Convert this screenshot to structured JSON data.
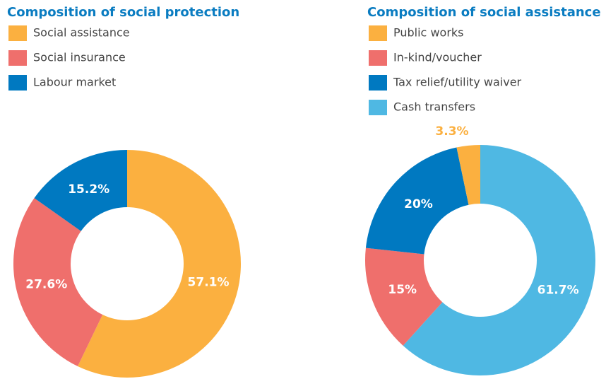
{
  "chart_data": [
    {
      "type": "donut",
      "title": "Composition of social protection",
      "categories": [
        "Social assistance",
        "Social insurance",
        "Labour market"
      ],
      "values": [
        57.1,
        27.6,
        15.2
      ],
      "value_labels": [
        "57.1%",
        "27.6%",
        "15.2%"
      ],
      "colors": [
        "#fbb040",
        "#ef6f6c",
        "#0079c1"
      ]
    },
    {
      "type": "donut",
      "title": "Composition of social assistance",
      "categories": [
        "Public works",
        "In-kind/voucher",
        "Tax relief/utility waiver",
        "Cash transfers"
      ],
      "values": [
        3.3,
        15,
        20,
        61.7
      ],
      "value_labels": [
        "3.3%",
        "15%",
        "20%",
        "61.7%"
      ],
      "colors": [
        "#fbb040",
        "#ef6f6c",
        "#0079c1",
        "#4fb8e3"
      ]
    }
  ]
}
